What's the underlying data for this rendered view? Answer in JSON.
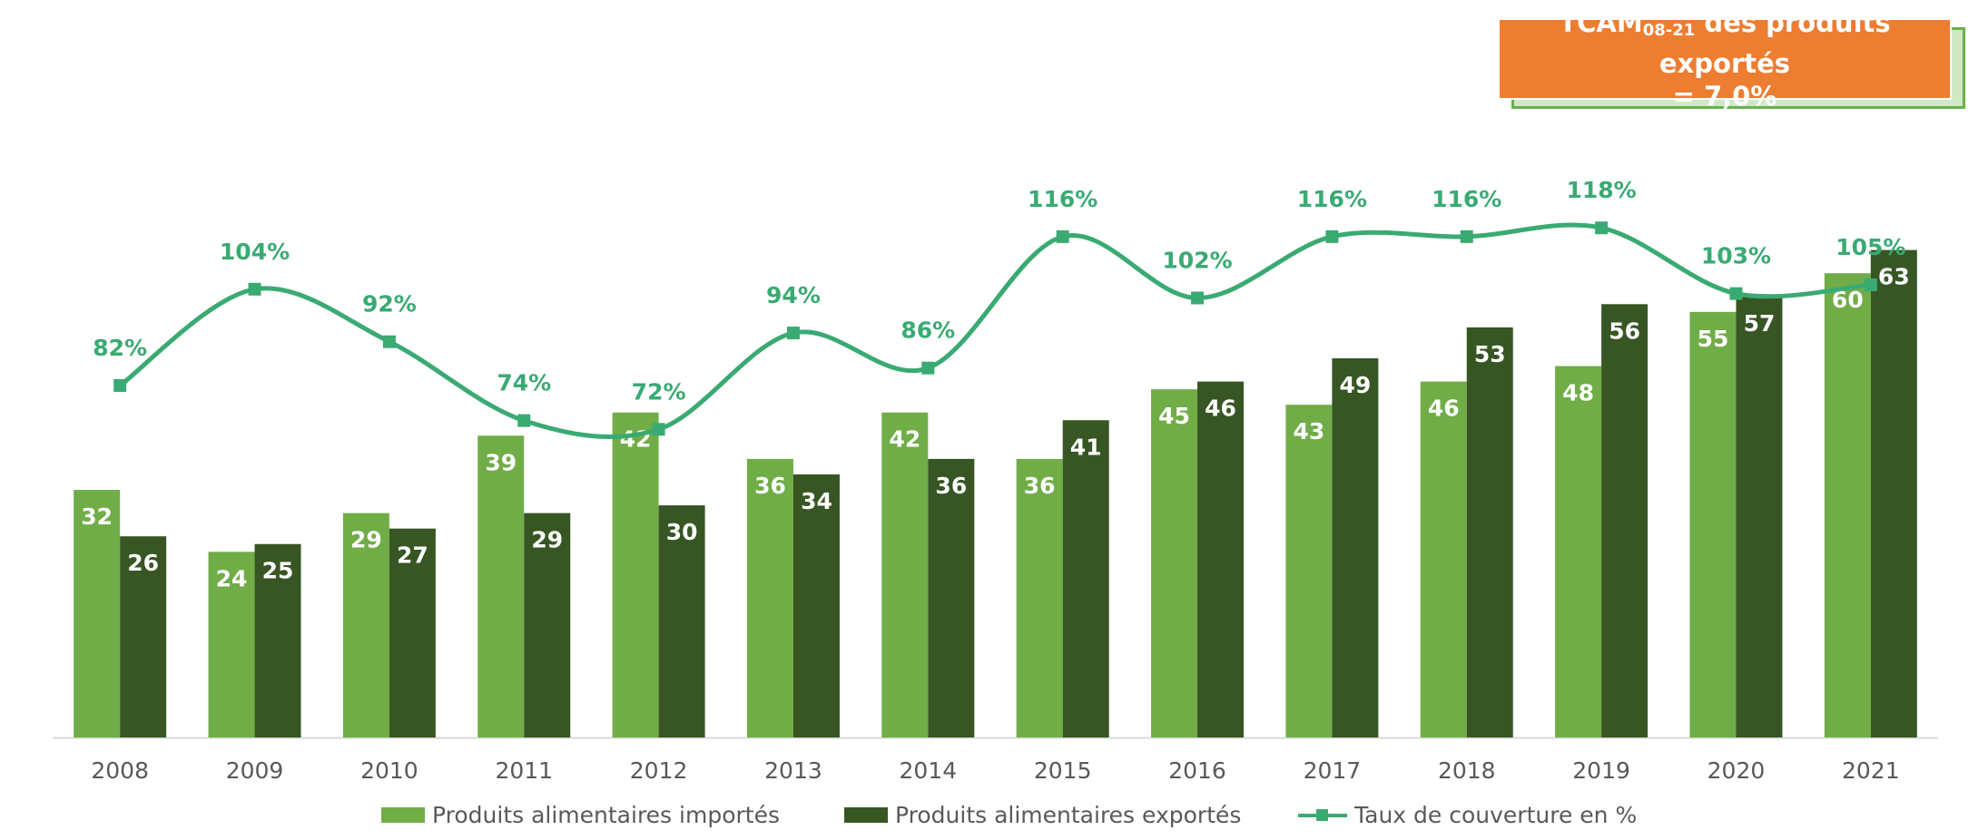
{
  "chart_data": {
    "type": "bar",
    "categories": [
      "2008",
      "2009",
      "2010",
      "2011",
      "2012",
      "2013",
      "2014",
      "2015",
      "2016",
      "2017",
      "2018",
      "2019",
      "2020",
      "2021"
    ],
    "series": [
      {
        "name": "Produits alimentaires importés",
        "type": "bar",
        "color": "#70ad47",
        "values": [
          32,
          24,
          29,
          39,
          42,
          36,
          42,
          36,
          45,
          43,
          46,
          48,
          55,
          60
        ]
      },
      {
        "name": "Produits alimentaires exportés",
        "type": "bar",
        "color": "#375623",
        "values": [
          26,
          25,
          27,
          29,
          30,
          34,
          36,
          41,
          46,
          49,
          53,
          56,
          57,
          63
        ]
      },
      {
        "name": "Taux de couverture en %",
        "type": "line",
        "color": "#3aaa73",
        "values": [
          82,
          104,
          92,
          74,
          72,
          94,
          86,
          116,
          102,
          116,
          116,
          118,
          103,
          105
        ],
        "labels": [
          "82%",
          "104%",
          "92%",
          "74%",
          "72%",
          "94%",
          "86%",
          "116%",
          "102%",
          "116%",
          "116%",
          "118%",
          "103%",
          "105%"
        ]
      }
    ],
    "bar_ylim": [
      0,
      66
    ],
    "line_ylim": [
      -5,
      140
    ],
    "grid": false,
    "legend_position": "bottom"
  },
  "annotation": {
    "line1_main": "TCAM",
    "line1_sub": "08-21",
    "line1_rest": " des produits exportés",
    "line2": "= 7,0%",
    "color": "#ed7d31"
  }
}
